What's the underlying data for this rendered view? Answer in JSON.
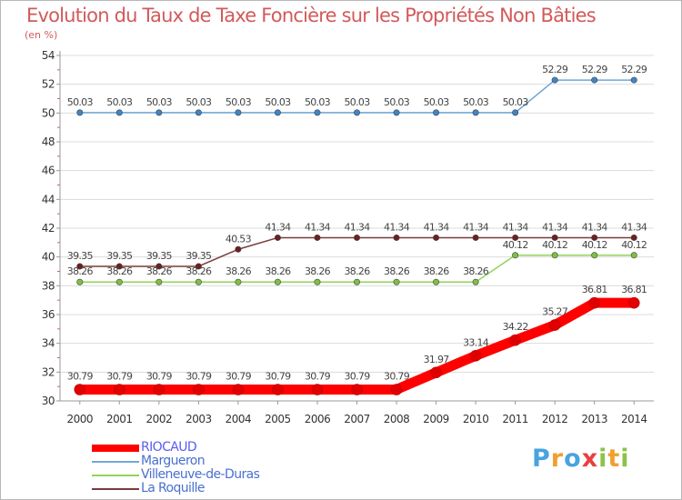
{
  "title": "Evolution du Taux de Taxe Foncière sur les Propriétés Non Bâties",
  "unit": "(en %)",
  "logo": {
    "text": "Proxiti",
    "letters": [
      {
        "ch": "P",
        "color": "#4aa3df"
      },
      {
        "ch": "r",
        "color": "#f0a030"
      },
      {
        "ch": "o",
        "color": "#4aa3df"
      },
      {
        "ch": "x",
        "color": "#e84040"
      },
      {
        "ch": "i",
        "color": "#8bc34a"
      },
      {
        "ch": "t",
        "color": "#f0a030"
      },
      {
        "ch": "i",
        "color": "#8bc34a"
      }
    ]
  },
  "chart_data": {
    "type": "line",
    "x": [
      "2000",
      "2001",
      "2002",
      "2003",
      "2004",
      "2005",
      "2006",
      "2007",
      "2008",
      "2009",
      "2010",
      "2011",
      "2012",
      "2013",
      "2014"
    ],
    "ylim": [
      30,
      54
    ],
    "yticks": [
      30,
      32,
      34,
      36,
      38,
      40,
      42,
      44,
      46,
      48,
      50,
      52,
      54
    ],
    "grid": "horizontal",
    "legend_placement": "bottom-left",
    "series": [
      {
        "name": "RIOCAUD",
        "color": "#ff0000",
        "marker_color": "#e00000",
        "values": [
          30.79,
          30.79,
          30.79,
          30.79,
          30.79,
          30.79,
          30.79,
          30.79,
          30.79,
          31.97,
          33.14,
          34.22,
          35.27,
          36.81,
          36.81
        ],
        "labels": [
          "30.79",
          "30.79",
          "30.79",
          "30.79",
          "30.79",
          "30.79",
          "30.79",
          "30.79",
          "30.79",
          "31.97",
          "33.14",
          "34.22",
          "35.27",
          "36.81",
          "36.81"
        ]
      },
      {
        "name": "Margueron",
        "color": "#6fa8d6",
        "marker_color": "#3d85c6",
        "values": [
          50.03,
          50.03,
          50.03,
          50.03,
          50.03,
          50.03,
          50.03,
          50.03,
          50.03,
          50.03,
          50.03,
          50.03,
          52.29,
          52.29,
          52.29
        ],
        "labels": [
          "50.03",
          "50.03",
          "50.03",
          "50.03",
          "50.03",
          "50.03",
          "50.03",
          "50.03",
          "50.03",
          "50.03",
          "50.03",
          "50.03",
          "52.29",
          "52.29",
          "52.29"
        ]
      },
      {
        "name": "Villeneuve-de-Duras",
        "color": "#93d35a",
        "marker_color": "#7cc140",
        "values": [
          38.26,
          38.26,
          38.26,
          38.26,
          38.26,
          38.26,
          38.26,
          38.26,
          38.26,
          38.26,
          38.26,
          40.12,
          40.12,
          40.12,
          40.12
        ],
        "labels": [
          "38.26",
          "38.26",
          "38.26",
          "38.26",
          "38.26",
          "38.26",
          "38.26",
          "38.26",
          "38.26",
          "38.26",
          "38.26",
          "40.12",
          "40.12",
          "40.12",
          "40.12"
        ]
      },
      {
        "name": "La Roquille",
        "color": "#7b3a3a",
        "marker_color": "#6b2020",
        "values": [
          39.35,
          39.35,
          39.35,
          39.35,
          40.53,
          41.34,
          41.34,
          41.34,
          41.34,
          41.34,
          41.34,
          41.34,
          41.34,
          41.34,
          41.34
        ],
        "labels": [
          "39.35",
          "39.35",
          "39.35",
          "39.35",
          "40.53",
          "41.34",
          "41.34",
          "41.34",
          "41.34",
          "41.34",
          "41.34",
          "41.34",
          "41.34",
          "41.34",
          "41.34"
        ]
      }
    ]
  }
}
